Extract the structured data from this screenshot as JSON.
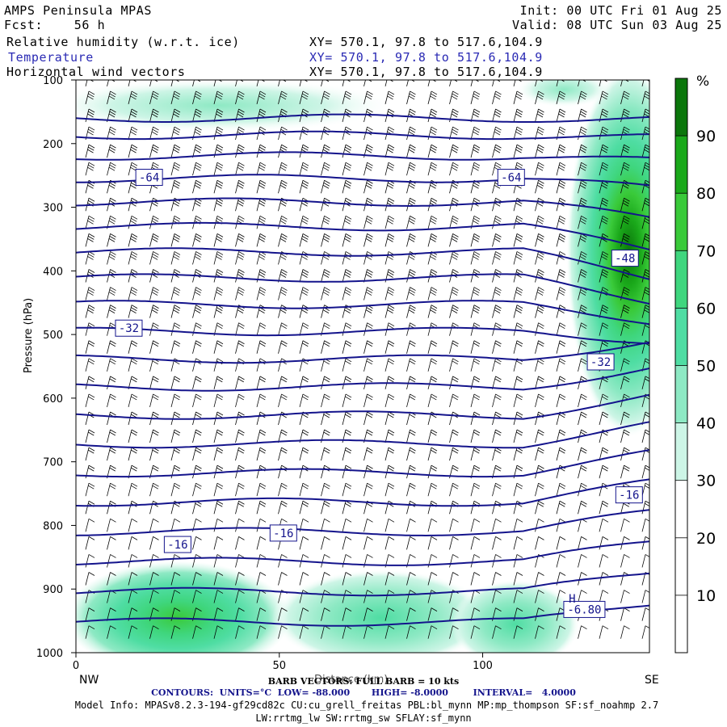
{
  "header": {
    "model": "AMPS Peninsula MPAS",
    "fcst_label": "Fcst:",
    "fcst_value": "56 h",
    "init": "Init: 00 UTC Fri 01 Aug 25",
    "valid": "Valid: 08 UTC Sun 03 Aug 25",
    "fields": [
      {
        "name": "Relative humidity (w.r.t. ice)",
        "xy": "XY= 570.1, 97.8 to 517.6,104.9"
      },
      {
        "name": "Temperature",
        "xy": "XY= 570.1, 97.8 to 517.6,104.9"
      },
      {
        "name": "Horizontal wind vectors",
        "xy": "XY= 570.1, 97.8 to 517.6,104.9"
      }
    ]
  },
  "colors": {
    "temperature": "#14148c",
    "rh_scale": [
      "#ffffff",
      "#ffffff",
      "#ffffff",
      "#cdf5e6",
      "#8ee9c4",
      "#4fdda3",
      "#3fd67e",
      "#3aca3a",
      "#1aa81a",
      "#0b760b"
    ],
    "barb": "#000000"
  },
  "colorbar": {
    "unit": "%",
    "ticks": [
      10,
      20,
      30,
      40,
      50,
      60,
      70,
      80,
      90
    ]
  },
  "chart_data": {
    "type": "contour",
    "title": "",
    "xlabel": "Distance (km)",
    "ylabel": "Pressure (hPa)",
    "x_ticks": [
      0,
      50,
      100
    ],
    "xlim": [
      0,
      141
    ],
    "y_ticks": [
      100,
      200,
      300,
      400,
      500,
      600,
      700,
      800,
      900,
      1000
    ],
    "ylim": [
      1000,
      100
    ],
    "x_end_labels": {
      "left": "NW",
      "right": "SE"
    },
    "temperature_contours": {
      "units": "°C",
      "low": -88,
      "high": -8,
      "interval": 4,
      "labels": [
        {
          "value": "-64",
          "x": 18,
          "p": 253
        },
        {
          "value": "-64",
          "x": 107,
          "p": 253
        },
        {
          "value": "-48",
          "x": 135,
          "p": 380
        },
        {
          "value": "-32",
          "x": 13,
          "p": 490
        },
        {
          "value": "-32",
          "x": 129,
          "p": 543
        },
        {
          "value": "-16",
          "x": 136,
          "p": 752
        },
        {
          "value": "-16",
          "x": 51,
          "p": 812
        },
        {
          "value": "-16",
          "x": 25,
          "p": 830
        },
        {
          "value": "-6.80",
          "x": 125,
          "p": 932
        }
      ],
      "high_marker": {
        "label": "H",
        "x": 122,
        "p": 915
      }
    },
    "rh_shading": {
      "label": "Relative humidity (w.r.t. ice)",
      "regions": [
        {
          "x_center": 136,
          "p_center": 370,
          "max_rh": 92
        },
        {
          "x_center": 25,
          "p_center": 950,
          "max_rh": 72
        },
        {
          "x_center": 75,
          "p_center": 945,
          "max_rh": 55
        },
        {
          "x_center": 35,
          "p_center": 140,
          "max_rh": 35
        }
      ]
    },
    "wind": {
      "barb_vectors": "FULL BARB = 10 kts",
      "direction": "westerly"
    }
  },
  "footer": {
    "barb": "BARB VECTORS: FULL BARB = 10 kts",
    "contours": "CONTOURS:  UNITS=°C  LOW= -88.000       HIGH= -8.0000        INTERVAL=   4.0000",
    "model_info_1": "Model Info: MPASv8.2.3-194-gf29cd82c CU:cu_grell_freitas PBL:bl_mynn MP:mp_thompson SF:sf_noahmp 2.7",
    "model_info_2": "LW:rrtmg_lw SW:rrtmg_sw SFLAY:sf_mynn"
  }
}
